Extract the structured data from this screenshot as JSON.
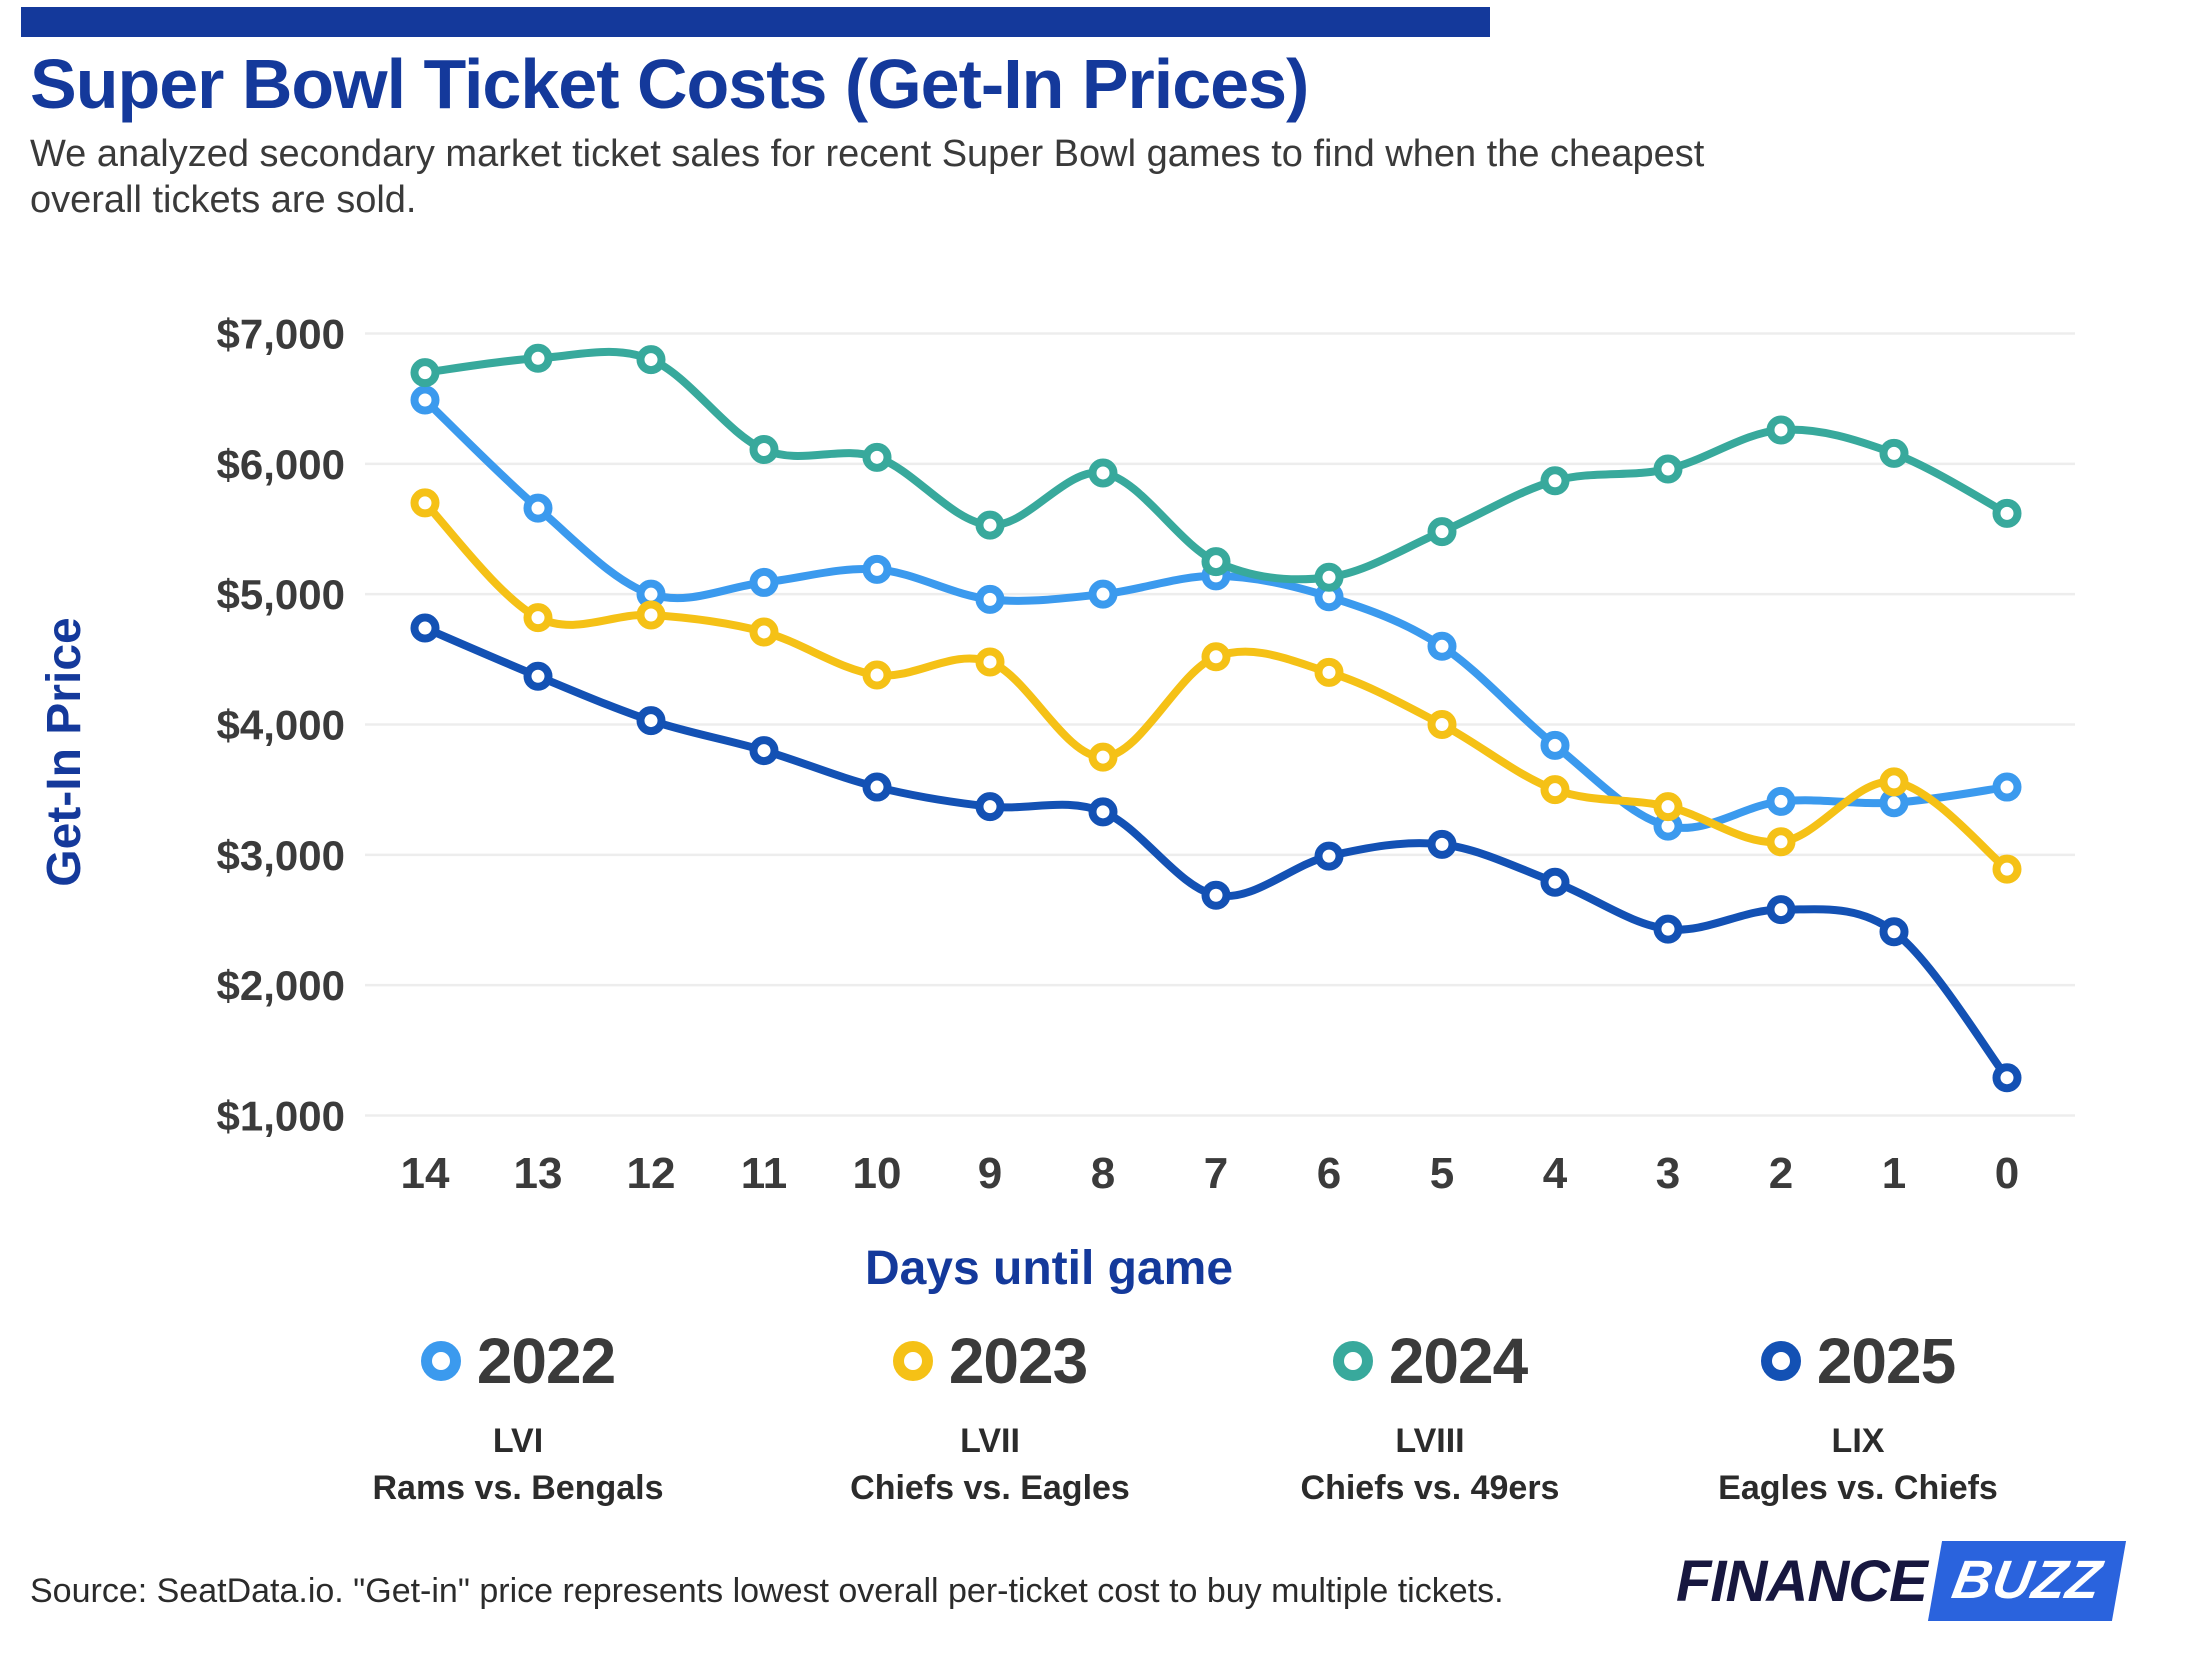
{
  "header": {
    "title": "Super Bowl Ticket Costs (Get-In Prices)",
    "subtitle": "We analyzed secondary market ticket sales for recent Super Bowl games to find when the cheapest\noverall tickets are sold."
  },
  "chart_data": {
    "type": "line",
    "title": "Super Bowl Ticket Costs (Get-In Prices)",
    "xlabel": "Days until game",
    "ylabel": "Get-In Price",
    "categories": [
      14,
      13,
      12,
      11,
      10,
      9,
      8,
      7,
      6,
      5,
      4,
      3,
      2,
      1,
      0
    ],
    "x_tick_labels": [
      "14",
      "13",
      "12",
      "11",
      "10",
      "9",
      "8",
      "7",
      "6",
      "5",
      "4",
      "3",
      "2",
      "1",
      "0"
    ],
    "y_tick_labels": [
      "$7,000",
      "$6,000",
      "$5,000",
      "$4,000",
      "$3,000",
      "$2,000",
      "$1,000"
    ],
    "y_tick_values": [
      7000,
      6000,
      5000,
      4000,
      3000,
      2000,
      1000
    ],
    "ylim": [
      1000,
      7000
    ],
    "grid": "horizontal",
    "legend_position": "bottom",
    "series": [
      {
        "name": "2022",
        "color": "#3B9AEE",
        "values": [
          6490,
          5660,
          5000,
          5090,
          5190,
          4960,
          5000,
          5140,
          4980,
          4600,
          3840,
          3220,
          3410,
          3400,
          3520
        ]
      },
      {
        "name": "2023",
        "color": "#F5C116",
        "values": [
          5700,
          4820,
          4840,
          4710,
          4380,
          4480,
          3750,
          4520,
          4400,
          4000,
          3500,
          3370,
          3100,
          3560,
          2890
        ]
      },
      {
        "name": "2024",
        "color": "#38A99C",
        "values": [
          6700,
          6810,
          6800,
          6110,
          6050,
          5530,
          5930,
          5250,
          5130,
          5480,
          5870,
          5960,
          6260,
          6080,
          5620
        ]
      },
      {
        "name": "2025",
        "color": "#1351B4",
        "values": [
          4740,
          4370,
          4030,
          3800,
          3520,
          3370,
          3330,
          2690,
          2990,
          3080,
          2790,
          2430,
          2580,
          2410,
          1290
        ]
      }
    ]
  },
  "legend": {
    "items": [
      {
        "year": "2022",
        "roman": "LVI",
        "matchup": "Rams vs. Bengals",
        "color": "#3B9AEE"
      },
      {
        "year": "2023",
        "roman": "LVII",
        "matchup": "Chiefs vs. Eagles",
        "color": "#F5C116"
      },
      {
        "year": "2024",
        "roman": "LVIII",
        "matchup": "Chiefs vs. 49ers",
        "color": "#38A99C"
      },
      {
        "year": "2025",
        "roman": "LIX",
        "matchup": "Eagles vs. Chiefs",
        "color": "#1351B4"
      }
    ]
  },
  "footer": {
    "source": "Source: SeatData.io. \"Get-in\" price represents lowest overall per-ticket cost to buy multiple tickets.",
    "logo": {
      "finance": "FINANCE",
      "buzz": "BUZZ"
    }
  },
  "colors": {
    "accent": "#14399B",
    "grid": "#EDEDED",
    "tick_text": "#3B3B3B",
    "logo_navy": "#17173F",
    "logo_blue": "#2A63DD"
  }
}
